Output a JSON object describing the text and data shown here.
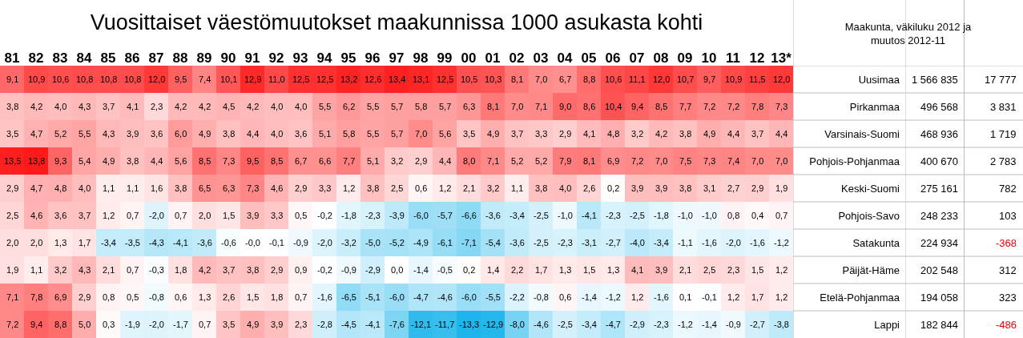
{
  "chart_data": [
    {
      "type": "heatmap",
      "title": "Vuosittaiset väestömuutokset maakunnissa 1000 asukasta kohti",
      "y_categories": [
        null,
        null,
        null,
        null,
        null,
        null,
        null,
        null,
        null,
        null
      ],
      "categories": [
        "81",
        "82",
        "83",
        "84",
        "85",
        "86",
        "87",
        "88",
        "89",
        "90",
        "91",
        "92",
        "93",
        "94",
        "95",
        "96",
        "97",
        "98",
        "99",
        "00",
        "01",
        "02",
        "03",
        "04",
        "05",
        "06",
        "07",
        "08",
        "09",
        "10",
        "11",
        "12",
        "13*"
      ],
      "cells": [
        [
          9.1,
          10.9,
          10.6,
          10.8,
          10.8,
          10.8,
          12.0,
          9.5,
          7.4,
          10.1,
          12.9,
          11.0,
          12.5,
          12.5,
          13.2,
          12.6,
          13.4,
          13.1,
          12.5,
          10.5,
          10.3,
          8.1,
          7.0,
          6.7,
          8.8,
          10.6,
          11.1,
          12.0,
          10.7,
          9.7,
          10.9,
          11.5,
          12.0
        ],
        [
          3.8,
          4.2,
          4.0,
          4.3,
          3.7,
          4.1,
          2.3,
          4.2,
          4.2,
          4.5,
          4.2,
          4.0,
          4.0,
          5.5,
          6.2,
          5.5,
          5.7,
          5.8,
          5.7,
          6.3,
          8.1,
          7.0,
          7.1,
          9.0,
          8.6,
          10.4,
          9.4,
          8.5,
          7.7,
          7.2,
          7.2,
          7.8,
          7.3
        ],
        [
          3.5,
          4.7,
          5.2,
          5.5,
          4.3,
          3.9,
          3.6,
          6.0,
          4.9,
          3.8,
          4.4,
          4.0,
          3.6,
          5.1,
          5.8,
          5.5,
          5.7,
          7.0,
          5.6,
          3.5,
          4.9,
          3.7,
          3.3,
          2.9,
          4.1,
          4.8,
          3.2,
          4.2,
          3.8,
          4.9,
          4.4,
          3.7,
          4.4
        ],
        [
          13.5,
          13.8,
          9.3,
          5.4,
          4.9,
          3.8,
          4.4,
          5.6,
          8.5,
          7.3,
          9.5,
          8.5,
          6.7,
          6.6,
          7.7,
          5.1,
          3.2,
          2.9,
          4.4,
          8.0,
          7.1,
          5.2,
          5.2,
          7.9,
          8.1,
          6.9,
          7.2,
          7.0,
          7.5,
          7.3,
          7.4,
          7.0,
          7.0
        ],
        [
          2.9,
          4.7,
          4.8,
          4.0,
          1.1,
          1.1,
          1.6,
          3.8,
          6.5,
          6.3,
          7.3,
          4.6,
          2.9,
          3.3,
          1.2,
          3.8,
          2.5,
          0.6,
          1.2,
          2.1,
          3.2,
          1.1,
          3.8,
          4.0,
          2.6,
          0.2,
          3.9,
          3.9,
          3.8,
          3.1,
          2.7,
          2.9,
          1.9
        ],
        [
          2.5,
          4.6,
          3.6,
          3.7,
          1.2,
          0.7,
          -2.0,
          0.7,
          2.0,
          1.5,
          3.9,
          3.3,
          0.5,
          -0.2,
          -1.8,
          -2.3,
          -3.9,
          -6.0,
          -5.7,
          -6.6,
          -3.6,
          -3.4,
          -2.5,
          -1.0,
          -4.1,
          -2.3,
          -2.5,
          -1.8,
          -1.0,
          -1.0,
          0.8,
          0.4,
          0.7
        ],
        [
          2.0,
          2.0,
          1.3,
          1.7,
          -3.4,
          -3.5,
          -4.3,
          -4.1,
          -3.6,
          -0.6,
          -0.0,
          -0.1,
          -0.9,
          -2.0,
          -3.2,
          -5.0,
          -5.2,
          -4.9,
          -6.1,
          -7.1,
          -5.4,
          -3.6,
          -2.5,
          -2.3,
          -3.1,
          -2.7,
          -4.0,
          -3.4,
          -1.1,
          -1.6,
          -2.0,
          -1.6,
          -1.2
        ],
        [
          1.9,
          1.1,
          3.2,
          4.3,
          2.1,
          0.7,
          -0.3,
          1.8,
          4.2,
          3.7,
          3.8,
          2.9,
          0.9,
          -0.2,
          -0.9,
          -2.9,
          0.0,
          -1.4,
          -0.5,
          0.2,
          1.4,
          2.2,
          1.7,
          1.3,
          1.5,
          1.3,
          4.1,
          3.9,
          2.1,
          2.5,
          2.3,
          1.5,
          1.2
        ],
        [
          7.1,
          7.8,
          6.9,
          2.9,
          0.8,
          0.5,
          -0.8,
          0.6,
          1.3,
          2.6,
          1.5,
          1.8,
          0.7,
          -1.6,
          -6.5,
          -5.1,
          -6.0,
          -4.7,
          -4.6,
          -6.0,
          -5.5,
          -2.2,
          -0.8,
          0.6,
          -1.4,
          -1.2,
          1.2,
          -1.6,
          0.1,
          -0.1,
          1.2,
          1.7,
          1.2
        ],
        [
          7.2,
          9.4,
          8.8,
          5.0,
          0.3,
          -1.9,
          -2.0,
          -1.7,
          0.7,
          3.5,
          4.9,
          3.9,
          2.3,
          -2.8,
          -4.5,
          -4.1,
          -7.6,
          -12.1,
          -11.7,
          -13.3,
          -12.9,
          -8.0,
          -4.6,
          -2.5,
          -3.4,
          -4.7,
          -2.9,
          -2.3,
          -1.2,
          -1.4,
          -0.9,
          -2.7,
          -3.8
        ]
      ],
      "cell_labels": [
        [
          "9,1",
          "10,9",
          "10,6",
          "10,8",
          "10,8",
          "10,8",
          "12,0",
          "9,5",
          "7,4",
          "10,1",
          "12,9",
          "11,0",
          "12,5",
          "12,5",
          "13,2",
          "12,6",
          "13,4",
          "13,1",
          "12,5",
          "10,5",
          "10,3",
          "8,1",
          "7,0",
          "6,7",
          "8,8",
          "10,6",
          "11,1",
          "12,0",
          "10,7",
          "9,7",
          "10,9",
          "11,5",
          "12,0"
        ],
        [
          "3,8",
          "4,2",
          "4,0",
          "4,3",
          "3,7",
          "4,1",
          "2,3",
          "4,2",
          "4,2",
          "4,5",
          "4,2",
          "4,0",
          "4,0",
          "5,5",
          "6,2",
          "5,5",
          "5,7",
          "5,8",
          "5,7",
          "6,3",
          "8,1",
          "7,0",
          "7,1",
          "9,0",
          "8,6",
          "10,4",
          "9,4",
          "8,5",
          "7,7",
          "7,2",
          "7,2",
          "7,8",
          "7,3"
        ],
        [
          "3,5",
          "4,7",
          "5,2",
          "5,5",
          "4,3",
          "3,9",
          "3,6",
          "6,0",
          "4,9",
          "3,8",
          "4,4",
          "4,0",
          "3,6",
          "5,1",
          "5,8",
          "5,5",
          "5,7",
          "7,0",
          "5,6",
          "3,5",
          "4,9",
          "3,7",
          "3,3",
          "2,9",
          "4,1",
          "4,8",
          "3,2",
          "4,2",
          "3,8",
          "4,9",
          "4,4",
          "3,7",
          "4,4"
        ],
        [
          "13,5",
          "13,8",
          "9,3",
          "5,4",
          "4,9",
          "3,8",
          "4,4",
          "5,6",
          "8,5",
          "7,3",
          "9,5",
          "8,5",
          "6,7",
          "6,6",
          "7,7",
          "5,1",
          "3,2",
          "2,9",
          "4,4",
          "8,0",
          "7,1",
          "5,2",
          "5,2",
          "7,9",
          "8,1",
          "6,9",
          "7,2",
          "7,0",
          "7,5",
          "7,3",
          "7,4",
          "7,0",
          "7,0"
        ],
        [
          "2,9",
          "4,7",
          "4,8",
          "4,0",
          "1,1",
          "1,1",
          "1,6",
          "3,8",
          "6,5",
          "6,3",
          "7,3",
          "4,6",
          "2,9",
          "3,3",
          "1,2",
          "3,8",
          "2,5",
          "0,6",
          "1,2",
          "2,1",
          "3,2",
          "1,1",
          "3,8",
          "4,0",
          "2,6",
          "0,2",
          "3,9",
          "3,9",
          "3,8",
          "3,1",
          "2,7",
          "2,9",
          "1,9"
        ],
        [
          "2,5",
          "4,6",
          "3,6",
          "3,7",
          "1,2",
          "0,7",
          "-2,0",
          "0,7",
          "2,0",
          "1,5",
          "3,9",
          "3,3",
          "0,5",
          "-0,2",
          "-1,8",
          "-2,3",
          "-3,9",
          "-6,0",
          "-5,7",
          "-6,6",
          "-3,6",
          "-3,4",
          "-2,5",
          "-1,0",
          "-4,1",
          "-2,3",
          "-2,5",
          "-1,8",
          "-1,0",
          "-1,0",
          "0,8",
          "0,4",
          "0,7"
        ],
        [
          "2,0",
          "2,0",
          "1,3",
          "1,7",
          "-3,4",
          "-3,5",
          "-4,3",
          "-4,1",
          "-3,6",
          "-0,6",
          "-0,0",
          "-0,1",
          "-0,9",
          "-2,0",
          "-3,2",
          "-5,0",
          "-5,2",
          "-4,9",
          "-6,1",
          "-7,1",
          "-5,4",
          "-3,6",
          "-2,5",
          "-2,3",
          "-3,1",
          "-2,7",
          "-4,0",
          "-3,4",
          "-1,1",
          "-1,6",
          "-2,0",
          "-1,6",
          "-1,2"
        ],
        [
          "1,9",
          "1,1",
          "3,2",
          "4,3",
          "2,1",
          "0,7",
          "-0,3",
          "1,8",
          "4,2",
          "3,7",
          "3,8",
          "2,9",
          "0,9",
          "-0,2",
          "-0,9",
          "-2,9",
          "0,0",
          "-1,4",
          "-0,5",
          "0,2",
          "1,4",
          "2,2",
          "1,7",
          "1,3",
          "1,5",
          "1,3",
          "4,1",
          "3,9",
          "2,1",
          "2,5",
          "2,3",
          "1,5",
          "1,2"
        ],
        [
          "7,1",
          "7,8",
          "6,9",
          "2,9",
          "0,8",
          "0,5",
          "-0,8",
          "0,6",
          "1,3",
          "2,6",
          "1,5",
          "1,8",
          "0,7",
          "-1,6",
          "-6,5",
          "-5,1",
          "-6,0",
          "-4,7",
          "-4,6",
          "-6,0",
          "-5,5",
          "-2,2",
          "-0,8",
          "0,6",
          "-1,4",
          "-1,2",
          "1,2",
          "-1,6",
          "0,1",
          "-0,1",
          "1,2",
          "1,7",
          "1,2"
        ],
        [
          "7,2",
          "9,4",
          "8,8",
          "5,0",
          "0,3",
          "-1,9",
          "-2,0",
          "-1,7",
          "0,7",
          "3,5",
          "4,9",
          "3,9",
          "2,3",
          "-2,8",
          "-4,5",
          "-4,1",
          "-7,6",
          "-12,1",
          "-11,7",
          "-13,3",
          "-12,9",
          "-8,0",
          "-4,6",
          "-2,5",
          "-3,4",
          "-4,7",
          "-2,9",
          "-2,3",
          "-1,2",
          "-1,4",
          "-0,9",
          "-2,7",
          "-3,8"
        ]
      ]
    },
    {
      "type": "heatmap",
      "title": "Maakunta, väkiluku 2012 ja muutos 2012-11",
      "color": "#ffffff",
      "categories": [
        null,
        null
      ],
      "y_categories": [
        "Uusimaa",
        "Pirkanmaa",
        "Varsinais-Suomi",
        "Pohjois-Pohjanmaa",
        "Keski-Suomi",
        "Pohjois-Savo",
        "Satakunta",
        "Päijät-Häme",
        "Etelä-Pohjanmaa",
        "Lappi"
      ],
      "cells": [
        [
          1566835,
          17777
        ],
        [
          496568,
          3831
        ],
        [
          468936,
          1719
        ],
        [
          400670,
          2783
        ],
        [
          275161,
          782
        ],
        [
          248233,
          103
        ],
        [
          224934,
          -368
        ],
        [
          202548,
          312
        ],
        [
          194058,
          323
        ],
        [
          182844,
          -486
        ]
      ],
      "cell_labels": [
        [
          "1 566 835",
          "17 777"
        ],
        [
          "496 568",
          "3 831"
        ],
        [
          "468 936",
          "1 719"
        ],
        [
          "400 670",
          "2 783"
        ],
        [
          "275 161",
          "782"
        ],
        [
          "248 233",
          "103"
        ],
        [
          "224 934",
          "-368"
        ],
        [
          "202 548",
          "312"
        ],
        [
          "194 058",
          "323"
        ],
        [
          "182 844",
          "-486"
        ]
      ]
    }
  ]
}
